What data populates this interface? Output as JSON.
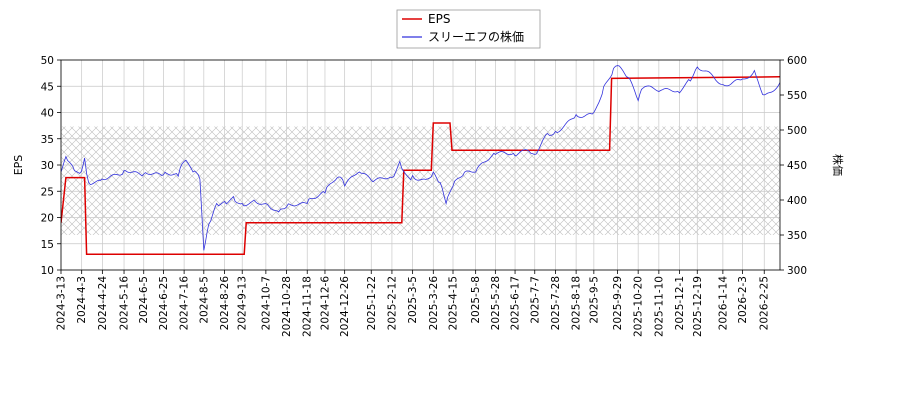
{
  "chart_data": {
    "type": "line",
    "legend": {
      "position": "top-center",
      "entries": [
        {
          "label": "EPS",
          "color": "#dd0000"
        },
        {
          "label": "スリーエフの株価",
          "color": "#3333dd"
        }
      ]
    },
    "y_left": {
      "label": "EPS",
      "ylim": [
        10,
        50
      ],
      "ticks": [
        10,
        15,
        20,
        25,
        30,
        35,
        40,
        45,
        50
      ]
    },
    "y_right": {
      "label": "株価",
      "ylim": [
        300,
        600
      ],
      "ticks": [
        300,
        350,
        400,
        450,
        500,
        550,
        600
      ]
    },
    "x": {
      "type": "date",
      "range": [
        "2024-03-13",
        "2026-03-13"
      ],
      "tick_labels": [
        "2024-3-13",
        "2024-4-3",
        "2024-4-24",
        "2024-5-16",
        "2024-6-5",
        "2024-6-25",
        "2024-7-16",
        "2024-8-5",
        "2024-8-26",
        "2024-9-13",
        "2024-10-7",
        "2024-10-28",
        "2024-11-18",
        "2024-12-6",
        "2024-12-26",
        "2025-1-22",
        "2025-2-12",
        "2025-3-5",
        "2025-3-26",
        "2025-4-15",
        "2025-5-8",
        "2025-5-28",
        "2025-6-17",
        "2025-7-7",
        "2025-7-28",
        "2025-8-18",
        "2025-9-5",
        "2025-9-29",
        "2025-10-20",
        "2025-11-10",
        "2025-12-1",
        "2025-12-19",
        "2026-1-14",
        "2026-2-3",
        "2026-2-25"
      ]
    },
    "grid": true,
    "hatched_band": {
      "axis": "right",
      "from": 350,
      "to": 505
    },
    "series": [
      {
        "name": "EPS",
        "axis": "left",
        "color": "#dd0000",
        "step": true,
        "points": [
          [
            "2024-03-13",
            19
          ],
          [
            "2024-03-18",
            27.6
          ],
          [
            "2024-04-06",
            27.6
          ],
          [
            "2024-04-08",
            13.0
          ],
          [
            "2024-09-15",
            13.0
          ],
          [
            "2024-09-17",
            19.0
          ],
          [
            "2025-02-22",
            19.0
          ],
          [
            "2025-02-24",
            29.0
          ],
          [
            "2025-03-24",
            29.0
          ],
          [
            "2025-03-26",
            38.0
          ],
          [
            "2025-04-12",
            38.0
          ],
          [
            "2025-04-14",
            32.8
          ],
          [
            "2025-09-21",
            32.8
          ],
          [
            "2025-09-23",
            46.5
          ],
          [
            "2026-03-13",
            46.8
          ]
        ]
      },
      {
        "name": "スリーエフの株価",
        "axis": "right",
        "color": "#3333dd",
        "step": false,
        "points": [
          [
            "2024-03-13",
            440
          ],
          [
            "2024-03-18",
            462
          ],
          [
            "2024-03-25",
            448
          ],
          [
            "2024-04-01",
            438
          ],
          [
            "2024-04-06",
            460
          ],
          [
            "2024-04-10",
            425
          ],
          [
            "2024-04-24",
            430
          ],
          [
            "2024-05-16",
            442
          ],
          [
            "2024-06-05",
            437
          ],
          [
            "2024-06-25",
            436
          ],
          [
            "2024-07-10",
            434
          ],
          [
            "2024-07-16",
            455
          ],
          [
            "2024-07-25",
            440
          ],
          [
            "2024-08-01",
            430
          ],
          [
            "2024-08-05",
            328
          ],
          [
            "2024-08-10",
            365
          ],
          [
            "2024-08-18",
            395
          ],
          [
            "2024-08-26",
            398
          ],
          [
            "2024-09-04",
            405
          ],
          [
            "2024-09-13",
            395
          ],
          [
            "2024-09-25",
            400
          ],
          [
            "2024-10-07",
            395
          ],
          [
            "2024-10-20",
            383
          ],
          [
            "2024-10-28",
            390
          ],
          [
            "2024-11-18",
            395
          ],
          [
            "2024-12-06",
            410
          ],
          [
            "2024-12-20",
            433
          ],
          [
            "2024-12-26",
            420
          ],
          [
            "2025-01-10",
            440
          ],
          [
            "2025-01-22",
            428
          ],
          [
            "2025-02-12",
            432
          ],
          [
            "2025-02-20",
            455
          ],
          [
            "2025-03-01",
            432
          ],
          [
            "2025-03-05",
            435
          ],
          [
            "2025-03-20",
            430
          ],
          [
            "2025-03-26",
            440
          ],
          [
            "2025-04-02",
            425
          ],
          [
            "2025-04-08",
            395
          ],
          [
            "2025-04-15",
            420
          ],
          [
            "2025-04-25",
            435
          ],
          [
            "2025-05-08",
            440
          ],
          [
            "2025-05-28",
            465
          ],
          [
            "2025-06-17",
            463
          ],
          [
            "2025-07-01",
            470
          ],
          [
            "2025-07-07",
            465
          ],
          [
            "2025-07-20",
            495
          ],
          [
            "2025-07-28",
            498
          ],
          [
            "2025-08-18",
            522
          ],
          [
            "2025-09-05",
            525
          ],
          [
            "2025-09-15",
            562
          ],
          [
            "2025-09-25",
            588
          ],
          [
            "2025-09-29",
            592
          ],
          [
            "2025-10-10",
            575
          ],
          [
            "2025-10-20",
            542
          ],
          [
            "2025-10-25",
            560
          ],
          [
            "2025-11-10",
            555
          ],
          [
            "2025-12-01",
            553
          ],
          [
            "2025-12-12",
            570
          ],
          [
            "2025-12-19",
            590
          ],
          [
            "2026-01-05",
            575
          ],
          [
            "2026-01-14",
            565
          ],
          [
            "2026-02-03",
            573
          ],
          [
            "2026-02-15",
            585
          ],
          [
            "2026-02-25",
            550
          ],
          [
            "2026-03-13",
            568
          ]
        ]
      }
    ]
  }
}
